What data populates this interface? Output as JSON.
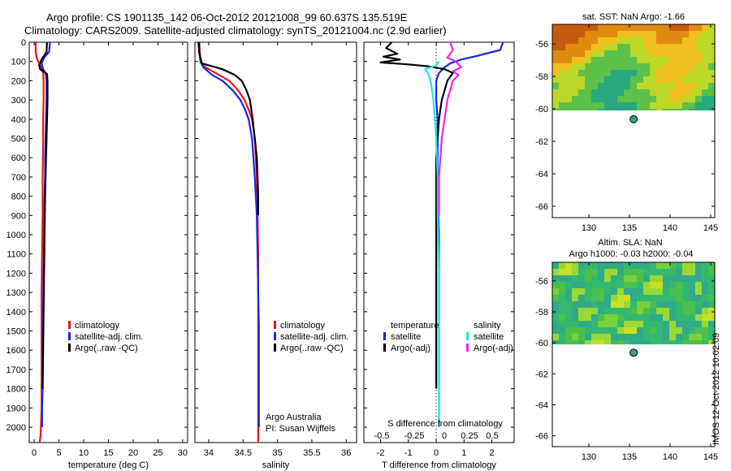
{
  "header": {
    "line1": "Argo profile: CS 1901135_142 06-Oct-2012 20121008_99 60.637S 135.519E",
    "line2": "Climatology: CARS2009. Satellite-adjusted climatology: synTS_20121004.nc (2.9d earlier)"
  },
  "side_stamp": "IMOS 12-Oct-2012 10:02:09",
  "colors": {
    "climatology": "#e8141e",
    "satellite": "#1a24e0",
    "argo": "#000000",
    "satellite_s": "#22e4e8",
    "argo_s": "#ee22ee",
    "land_bg": "#ffffff"
  },
  "chart_data": [
    {
      "type": "line",
      "name": "temperature",
      "xlabel": "temperature (deg C)",
      "ylabel": "",
      "xlim": [
        -1,
        31
      ],
      "ylim": [
        2080,
        0
      ],
      "xticks": [
        0,
        5,
        10,
        15,
        20,
        25,
        30
      ],
      "yticks": [
        0,
        100,
        200,
        300,
        400,
        500,
        600,
        700,
        800,
        900,
        1000,
        1100,
        1200,
        1300,
        1400,
        1500,
        1600,
        1700,
        1800,
        1900,
        2000
      ],
      "legend": [
        "climatology",
        "satellite-adj. clim.",
        "Argo(..raw -QC)"
      ],
      "series": [
        {
          "key": "clim",
          "color": "#e8141e",
          "x": [
            0.3,
            0.3,
            0.5,
            1.0,
            1.6,
            1.8,
            1.9,
            1.9,
            1.8,
            1.8,
            1.7,
            1.7,
            1.6,
            1.5,
            1.5,
            1.5,
            1.5,
            1.4,
            1.3,
            1.2,
            1.1
          ],
          "y": [
            0,
            50,
            80,
            110,
            140,
            160,
            200,
            300,
            400,
            500,
            700,
            900,
            1100,
            1300,
            1500,
            1700,
            1900,
            1980,
            2040,
            2060,
            2080
          ]
        },
        {
          "key": "sat",
          "color": "#1a24e0",
          "x": [
            3.2,
            3.0,
            2.0,
            1.5,
            1.8,
            2.3,
            2.5,
            2.5,
            2.4,
            2.3,
            2.2,
            2.2,
            2.1,
            2.0,
            1.9,
            1.8,
            1.7,
            1.7,
            1.6,
            1.6
          ],
          "y": [
            0,
            50,
            80,
            110,
            140,
            160,
            200,
            300,
            400,
            500,
            600,
            700,
            800,
            1000,
            1200,
            1400,
            1600,
            1800,
            1900,
            2000
          ]
        },
        {
          "key": "argo",
          "color": "#000000",
          "x": [
            2.6,
            2.5,
            1.5,
            1.0,
            1.2,
            2.0,
            2.6,
            2.7,
            2.7,
            2.6,
            2.5,
            2.4,
            2.3,
            2.2,
            2.1,
            2.0,
            1.9,
            1.8,
            1.7
          ],
          "y": [
            0,
            50,
            90,
            120,
            140,
            155,
            165,
            200,
            300,
            400,
            500,
            600,
            700,
            800,
            1000,
            1200,
            1400,
            1600,
            1800
          ]
        }
      ]
    },
    {
      "type": "line",
      "name": "salinity",
      "xlabel": "salinity",
      "ylabel": "",
      "xlim": [
        33.8,
        36.15
      ],
      "ylim": [
        2080,
        0
      ],
      "xticks": [
        34,
        34.5,
        35,
        35.5,
        36
      ],
      "yticks": [
        0,
        100,
        200,
        300,
        400,
        500,
        600,
        700,
        800,
        900,
        1000,
        1100,
        1200,
        1300,
        1400,
        1500,
        1600,
        1700,
        1800,
        1900,
        2000
      ],
      "legend": [
        "climatology",
        "satellite-adj. clim.",
        "Argo(..raw -QC)"
      ],
      "annotation": [
        "Argo Australia",
        "PI: Susan Wijffels"
      ],
      "series": [
        {
          "key": "clim",
          "color": "#e8141e",
          "x": [
            33.86,
            33.87,
            33.88,
            33.95,
            34.15,
            34.3,
            34.43,
            34.52,
            34.58,
            34.63,
            34.67,
            34.7,
            34.71,
            34.72,
            34.72,
            34.72,
            34.72,
            34.72,
            34.72,
            34.72
          ],
          "y": [
            0,
            40,
            100,
            130,
            170,
            200,
            250,
            300,
            350,
            400,
            500,
            700,
            900,
            1100,
            1300,
            1500,
            1700,
            1900,
            2000,
            2080
          ]
        },
        {
          "key": "sat",
          "color": "#1a24e0",
          "x": [
            33.85,
            33.86,
            33.88,
            33.92,
            34.05,
            34.2,
            34.35,
            34.46,
            34.53,
            34.58,
            34.63,
            34.67,
            34.7,
            34.71,
            34.72,
            34.73,
            34.73,
            34.73,
            34.73
          ],
          "y": [
            0,
            40,
            100,
            130,
            170,
            200,
            250,
            300,
            350,
            400,
            500,
            700,
            900,
            1100,
            1300,
            1500,
            1700,
            1900,
            2000
          ]
        },
        {
          "key": "argo",
          "color": "#000000",
          "x": [
            33.86,
            33.86,
            33.9,
            34.2,
            34.38,
            34.48,
            34.55,
            34.6,
            34.64,
            34.67,
            34.7,
            34.71,
            34.72,
            34.72
          ],
          "y": [
            0,
            50,
            110,
            140,
            170,
            200,
            250,
            300,
            400,
            500,
            600,
            700,
            800,
            900
          ]
        }
      ]
    },
    {
      "type": "line",
      "name": "difference",
      "xlabel": "T difference from climatology",
      "ylabel": "",
      "xlim": [
        -2.6,
        2.8
      ],
      "ylim": [
        2080,
        0
      ],
      "xticks": [
        -2,
        -1,
        0,
        1,
        2
      ],
      "top_label": "S difference from climatology",
      "top_ticks": [
        "-0.5",
        "-0.25",
        "0",
        "0.25",
        "0.5"
      ],
      "yticks": [
        0,
        100,
        200,
        300,
        400,
        500,
        600,
        700,
        800,
        900,
        1000,
        1100,
        1200,
        1300,
        1400,
        1500,
        1600,
        1700,
        1800,
        1900,
        2000
      ],
      "legend_titles": [
        "temperature",
        "salinity"
      ],
      "legend": [
        "satellite",
        "Argo(-adj)",
        "satellite",
        "Argo(-adj)"
      ],
      "series": [
        {
          "key": "t_sat",
          "color": "#1a24e0",
          "x": [
            2.4,
            2.3,
            1.5,
            0.9,
            0.5,
            0.3,
            0.1,
            0.0,
            0.0,
            0.05,
            0.05,
            0.05,
            0.1,
            0.1,
            0.1,
            0.1,
            0.1
          ],
          "y": [
            0,
            40,
            70,
            90,
            110,
            130,
            160,
            200,
            300,
            400,
            600,
            800,
            1000,
            1200,
            1500,
            1800,
            2000
          ]
        },
        {
          "key": "t_argo",
          "color": "#000000",
          "x": [
            -1.6,
            -1.8,
            -1.4,
            -1.9,
            -1.3,
            -2.0,
            -1.0,
            -0.3,
            0.3,
            0.6,
            0.4,
            0.2,
            0.1,
            0.0,
            0.0,
            0.0,
            0.0,
            0.0,
            0.0
          ],
          "y": [
            0,
            30,
            60,
            75,
            90,
            105,
            115,
            125,
            140,
            160,
            200,
            300,
            400,
            600,
            900,
            1200,
            1500,
            1700,
            1800
          ]
        },
        {
          "key": "s_sat",
          "color": "#22e4e8",
          "x": [
            0.1,
            0.0,
            -0.2,
            -0.4,
            -0.3,
            -0.2,
            -0.1,
            -0.05,
            0.0,
            0.05,
            0.05,
            0.1,
            0.1,
            0.1,
            0.1
          ],
          "y": [
            100,
            120,
            130,
            140,
            160,
            200,
            300,
            400,
            500,
            700,
            900,
            1200,
            1500,
            1800,
            2000
          ]
        },
        {
          "key": "s_argo",
          "color": "#ee22ee",
          "x": [
            0.5,
            0.6,
            0.4,
            0.7,
            0.9,
            0.6,
            0.8,
            0.6,
            0.5,
            0.4,
            0.3,
            0.2,
            0.15,
            0.1,
            0.1,
            0.1
          ],
          "y": [
            0,
            40,
            80,
            100,
            130,
            150,
            170,
            200,
            250,
            300,
            400,
            500,
            600,
            700,
            800,
            900
          ]
        }
      ]
    },
    {
      "type": "heatmap",
      "name": "sst-map",
      "title": "sat. SST: NaN Argo: -1.66",
      "xticks": [
        130,
        135,
        140,
        145
      ],
      "yticks": [
        -56,
        -58,
        -60,
        -62,
        -64,
        -66
      ],
      "xlim": [
        125.5,
        145.5
      ],
      "ylim": [
        -66.7,
        -54.8
      ],
      "data_extent": [
        -60.1,
        -54.8
      ],
      "marker": {
        "lon": 135.519,
        "lat": -60.637
      },
      "palette": [
        "#c85a0e",
        "#e08a10",
        "#f0c020",
        "#bcd828",
        "#5cc04a",
        "#2aa880",
        "#2a9a98"
      ]
    },
    {
      "type": "heatmap",
      "name": "sla-map",
      "title": "Altim. SLA: NaN",
      "subtitle": "Argo h1000: -0.03 h2000: -0.04",
      "xticks": [
        130,
        135,
        140,
        145
      ],
      "yticks": [
        -56,
        -58,
        -60,
        -62,
        -64,
        -66
      ],
      "xlim": [
        125.5,
        145.5
      ],
      "ylim": [
        -66.7,
        -54.8
      ],
      "data_extent": [
        -60.1,
        -54.8
      ],
      "marker": {
        "lon": 135.519,
        "lat": -60.637
      },
      "palette": [
        "#7ad03a",
        "#4cc04c",
        "#34b870",
        "#30aa88",
        "#9ad834",
        "#c6e024"
      ]
    }
  ]
}
